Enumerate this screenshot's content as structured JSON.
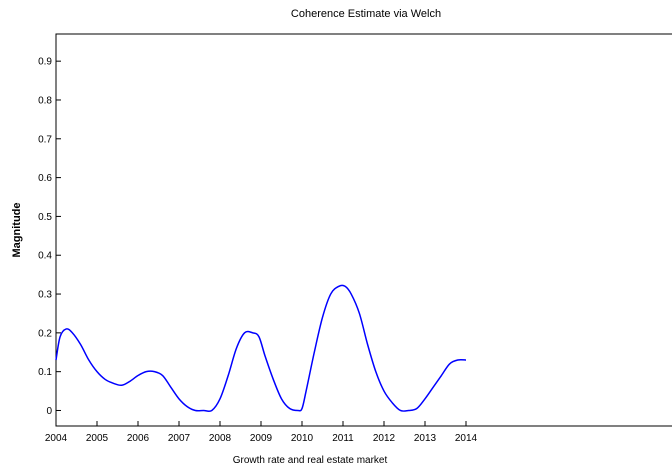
{
  "chart_data": {
    "type": "line",
    "title": "Coherence Estimate via Welch",
    "xlabel": "Growth rate and real estate market",
    "ylabel": "Magnitude",
    "xlim": [
      2004,
      2014
    ],
    "ylim": [
      -0.04,
      0.97
    ],
    "x_ticks": [
      "2004",
      "2005",
      "2006",
      "2007",
      "2008",
      "2009",
      "2010",
      "2011",
      "2012",
      "2013",
      "2014"
    ],
    "y_ticks": [
      "0",
      "0.1",
      "0.2",
      "0.3",
      "0.4",
      "0.5",
      "0.6",
      "0.7",
      "0.8",
      "0.9"
    ],
    "grid": false,
    "line_color": "#0000ff",
    "series": [
      {
        "x": [
          2004.0,
          2004.1,
          2004.25,
          2004.4,
          2004.6,
          2004.8,
          2005.0,
          2005.2,
          2005.4,
          2005.6,
          2005.8,
          2006.0,
          2006.2,
          2006.4,
          2006.6,
          2006.8,
          2007.0,
          2007.2,
          2007.4,
          2007.6,
          2007.8,
          2008.0,
          2008.2,
          2008.4,
          2008.6,
          2008.8,
          2008.95,
          2009.1,
          2009.3,
          2009.5,
          2009.7,
          2009.9,
          2010.0,
          2010.1,
          2010.3,
          2010.5,
          2010.7,
          2010.9,
          2011.05,
          2011.2,
          2011.4,
          2011.6,
          2011.8,
          2012.0,
          2012.2,
          2012.4,
          2012.6,
          2012.8,
          2013.0,
          2013.2,
          2013.4,
          2013.6,
          2013.8,
          2014.0
        ],
        "y": [
          0.13,
          0.19,
          0.21,
          0.2,
          0.17,
          0.13,
          0.1,
          0.08,
          0.07,
          0.065,
          0.075,
          0.09,
          0.1,
          0.1,
          0.09,
          0.06,
          0.03,
          0.01,
          0.0,
          0.0,
          0.0,
          0.03,
          0.09,
          0.16,
          0.2,
          0.2,
          0.19,
          0.14,
          0.08,
          0.03,
          0.005,
          0.0,
          0.005,
          0.05,
          0.15,
          0.24,
          0.3,
          0.32,
          0.32,
          0.3,
          0.25,
          0.17,
          0.1,
          0.05,
          0.02,
          0.0,
          0.0,
          0.005,
          0.03,
          0.06,
          0.09,
          0.12,
          0.13,
          0.13
        ]
      }
    ]
  }
}
